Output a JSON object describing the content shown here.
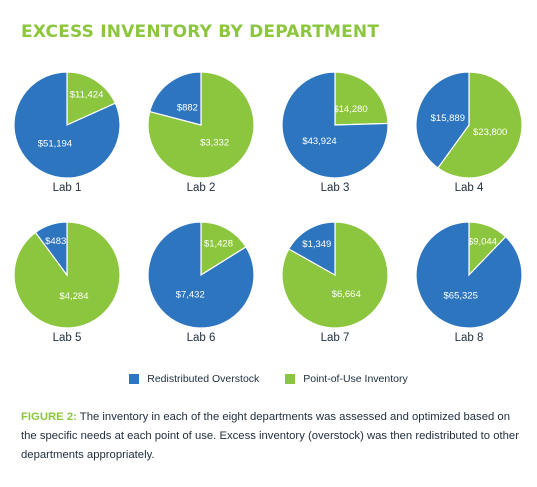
{
  "title": "EXCESS INVENTORY BY DEPARTMENT",
  "colors": {
    "title": "#8cc63f",
    "redistributed": "#2e75c0",
    "point_of_use": "#8cc63f",
    "text": "#1f2d3d"
  },
  "legend": {
    "redistributed": "Redistributed Overstock",
    "point_of_use": "Point-of-Use Inventory"
  },
  "chart_data": [
    {
      "type": "pie",
      "title": "Lab 1",
      "slices": [
        {
          "name": "Redistributed Overstock",
          "value": 51194,
          "label": "$51,194"
        },
        {
          "name": "Point-of-Use Inventory",
          "value": 11424,
          "label": "$11,424"
        }
      ]
    },
    {
      "type": "pie",
      "title": "Lab 2",
      "slices": [
        {
          "name": "Redistributed Overstock",
          "value": 882,
          "label": "$882"
        },
        {
          "name": "Point-of-Use Inventory",
          "value": 3332,
          "label": "$3,332"
        }
      ]
    },
    {
      "type": "pie",
      "title": "Lab 3",
      "slices": [
        {
          "name": "Redistributed Overstock",
          "value": 43924,
          "label": "$43,924"
        },
        {
          "name": "Point-of-Use Inventory",
          "value": 14280,
          "label": "$14,280"
        }
      ]
    },
    {
      "type": "pie",
      "title": "Lab 4",
      "slices": [
        {
          "name": "Redistributed Overstock",
          "value": 15889,
          "label": "$15,889"
        },
        {
          "name": "Point-of-Use Inventory",
          "value": 23800,
          "label": "$23,800"
        }
      ]
    },
    {
      "type": "pie",
      "title": "Lab 5",
      "slices": [
        {
          "name": "Redistributed Overstock",
          "value": 483,
          "label": "$483"
        },
        {
          "name": "Point-of-Use Inventory",
          "value": 4284,
          "label": "$4,284"
        }
      ]
    },
    {
      "type": "pie",
      "title": "Lab 6",
      "slices": [
        {
          "name": "Redistributed Overstock",
          "value": 7432,
          "label": "$7,432"
        },
        {
          "name": "Point-of-Use Inventory",
          "value": 1428,
          "label": "$1,428"
        }
      ]
    },
    {
      "type": "pie",
      "title": "Lab 7",
      "slices": [
        {
          "name": "Redistributed Overstock",
          "value": 1349,
          "label": "$1,349"
        },
        {
          "name": "Point-of-Use Inventory",
          "value": 6664,
          "label": "$6,664"
        }
      ]
    },
    {
      "type": "pie",
      "title": "Lab 8",
      "slices": [
        {
          "name": "Redistributed Overstock",
          "value": 65325,
          "label": "$65,325"
        },
        {
          "name": "Point-of-Use Inventory",
          "value": 9044,
          "label": "$9,044"
        }
      ]
    }
  ],
  "caption": {
    "label": "FIGURE 2:",
    "text": " The inventory in each of the eight departments was assessed and optimized based on the specific needs at each point of use. Excess inventory (overstock) was then redistributed to other departments appropriately."
  }
}
